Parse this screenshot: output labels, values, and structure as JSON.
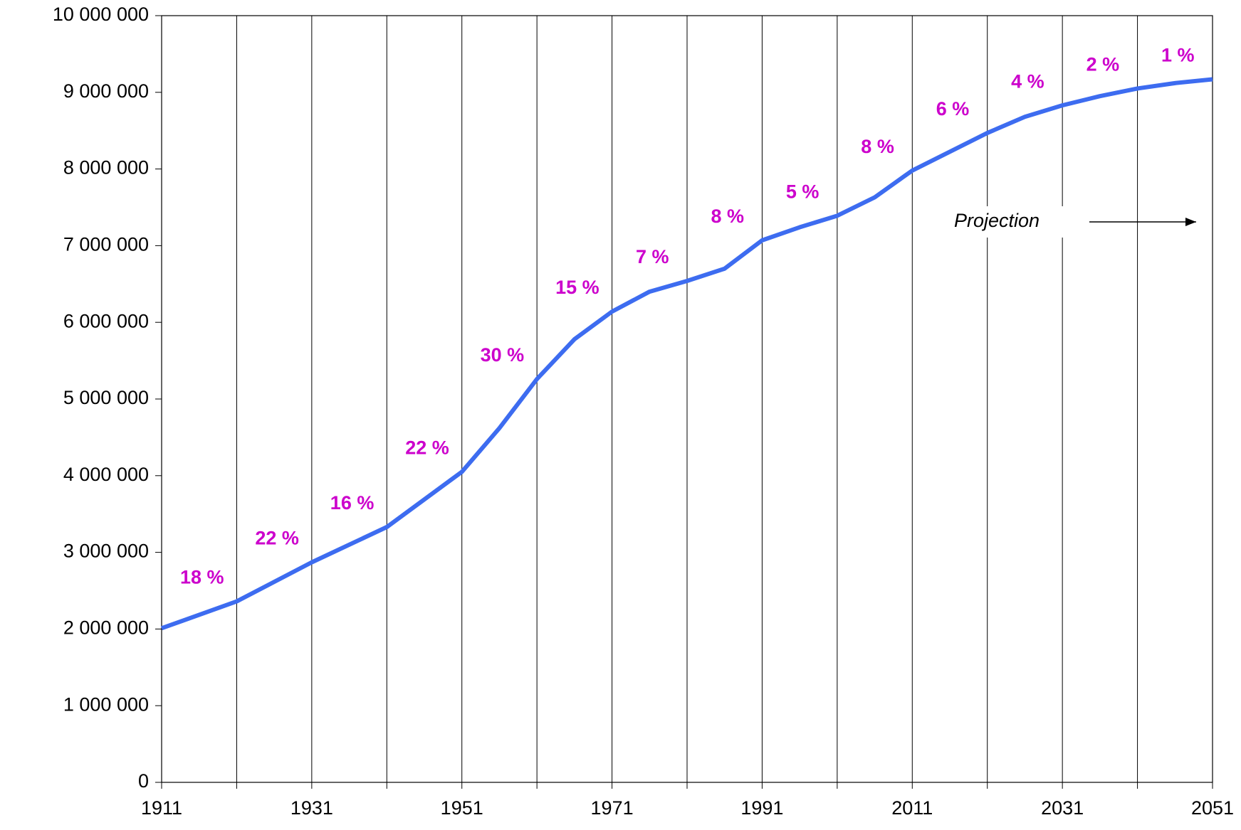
{
  "chart_data": {
    "type": "line",
    "x": [
      1911,
      1921,
      1931,
      1941,
      1951,
      1956,
      1961,
      1966,
      1971,
      1976,
      1981,
      1986,
      1991,
      1996,
      2001,
      2006,
      2011,
      2021,
      2026,
      2031,
      2036,
      2041,
      2046,
      2051
    ],
    "series": [
      {
        "color": "#3d6cf0",
        "values": [
          2010000,
          2360000,
          2870000,
          3330000,
          4050000,
          4620000,
          5260000,
          5780000,
          6140000,
          6400000,
          6540000,
          6700000,
          7070000,
          7240000,
          7390000,
          7630000,
          7980000,
          8470000,
          8680000,
          8830000,
          8950000,
          9050000,
          9120000,
          9170000
        ]
      }
    ],
    "growth_labels": [
      "18 %",
      "22 %",
      "16 %",
      "22 %",
      "30 %",
      "15 %",
      "7 %",
      "8 %",
      "5 %",
      "8 %",
      "6 %",
      "4 %",
      "2 %",
      "1 %"
    ],
    "growth_color": "#cc00cc",
    "annotation": "Projection",
    "xlim": [
      1911,
      2051
    ],
    "xticks": [
      1911,
      1931,
      1951,
      1971,
      1991,
      2011,
      2031,
      2051
    ],
    "xminor_ticks": [
      1921,
      1941,
      1961,
      1981,
      2001,
      2021,
      2041
    ],
    "ylim": [
      0,
      10000000
    ],
    "yticks": [
      0,
      {
        "value": 1000000,
        "label": "1 000 000"
      },
      {
        "value": 2000000,
        "label": "2 000 000"
      },
      {
        "value": 3000000,
        "label": "3 000 000"
      },
      {
        "value": 4000000,
        "label": "4 000 000"
      },
      {
        "value": 5000000,
        "label": "5 000 000"
      },
      {
        "value": 6000000,
        "label": "6 000 000"
      },
      {
        "value": 7000000,
        "label": "7 000 000"
      },
      {
        "value": 8000000,
        "label": "8 000 000"
      },
      {
        "value": 9000000,
        "label": "9 000 000"
      },
      {
        "value": 10000000,
        "label": "10 000 000"
      }
    ],
    "grid": true
  }
}
